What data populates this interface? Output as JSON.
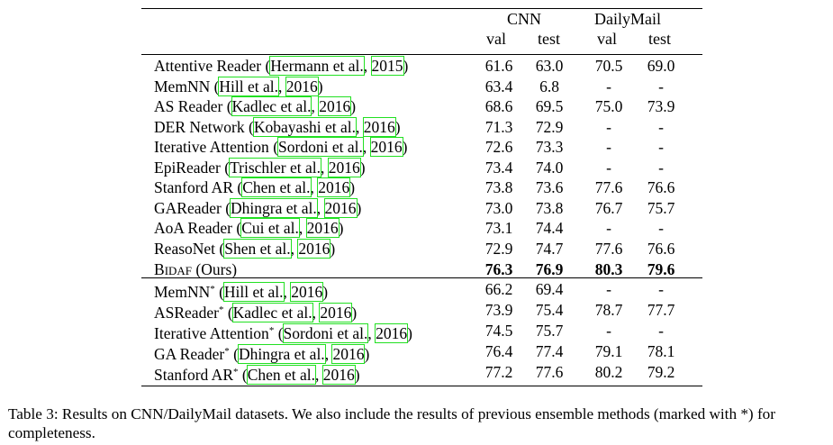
{
  "table": {
    "group_headers": [
      "CNN",
      "DailyMail"
    ],
    "sub_headers": [
      "val",
      "test",
      "val",
      "test"
    ],
    "single_rows": [
      {
        "name": "Attentive Reader",
        "author": "Hermann et al.",
        "year": "2015",
        "values": [
          "61.6",
          "63.0",
          "70.5",
          "69.0"
        ]
      },
      {
        "name": "MemNN",
        "author": "Hill et al.",
        "year": "2016",
        "values": [
          "63.4",
          "6.8",
          "-",
          "-"
        ]
      },
      {
        "name": "AS Reader",
        "author": "Kadlec et al.",
        "year": "2016",
        "values": [
          "68.6",
          "69.5",
          "75.0",
          "73.9"
        ]
      },
      {
        "name": "DER Network",
        "author": "Kobayashi et al.",
        "year": "2016",
        "values": [
          "71.3",
          "72.9",
          "-",
          "-"
        ]
      },
      {
        "name": "Iterative Attention",
        "author": "Sordoni et al.",
        "year": "2016",
        "values": [
          "72.6",
          "73.3",
          "-",
          "-"
        ]
      },
      {
        "name": "EpiReader",
        "author": "Trischler et al.",
        "year": "2016",
        "values": [
          "73.4",
          "74.0",
          "-",
          "-"
        ]
      },
      {
        "name": "Stanford AR",
        "author": "Chen et al.",
        "year": "2016",
        "values": [
          "73.8",
          "73.6",
          "77.6",
          "76.6"
        ]
      },
      {
        "name": "GAReader",
        "author": "Dhingra et al.",
        "year": "2016",
        "values": [
          "73.0",
          "73.8",
          "76.7",
          "75.7"
        ]
      },
      {
        "name": "AoA Reader",
        "author": "Cui et al.",
        "year": "2016",
        "values": [
          "73.1",
          "74.4",
          "-",
          "-"
        ]
      },
      {
        "name": "ReasoNet",
        "author": "Shen et al.",
        "year": "2016",
        "values": [
          "72.9",
          "74.7",
          "77.6",
          "76.6"
        ]
      }
    ],
    "ours": {
      "name_first": "B",
      "name_rest": "IDAF",
      "suffix": "(Ours)",
      "values": [
        "76.3",
        "76.9",
        "80.3",
        "79.6"
      ]
    },
    "ensemble_rows": [
      {
        "name": "MemNN",
        "author": "Hill et al.",
        "year": "2016",
        "values": [
          "66.2",
          "69.4",
          "-",
          "-"
        ]
      },
      {
        "name": "ASReader",
        "author": "Kadlec et al.",
        "year": "2016",
        "values": [
          "73.9",
          "75.4",
          "78.7",
          "77.7"
        ]
      },
      {
        "name": "Iterative Attention",
        "author": "Sordoni et al.",
        "year": "2016",
        "values": [
          "74.5",
          "75.7",
          "-",
          "-"
        ]
      },
      {
        "name": "GA Reader",
        "author": "Dhingra et al.",
        "year": "2016",
        "values": [
          "76.4",
          "77.4",
          "79.1",
          "78.1"
        ]
      },
      {
        "name": "Stanford AR",
        "author": "Chen et al.",
        "year": "2016",
        "values": [
          "77.2",
          "77.6",
          "80.2",
          "79.2"
        ]
      }
    ],
    "star": "*"
  },
  "caption": "Table 3: Results on CNN/DailyMail datasets. We also include the results of previous ensemble methods (marked with *) for completeness."
}
